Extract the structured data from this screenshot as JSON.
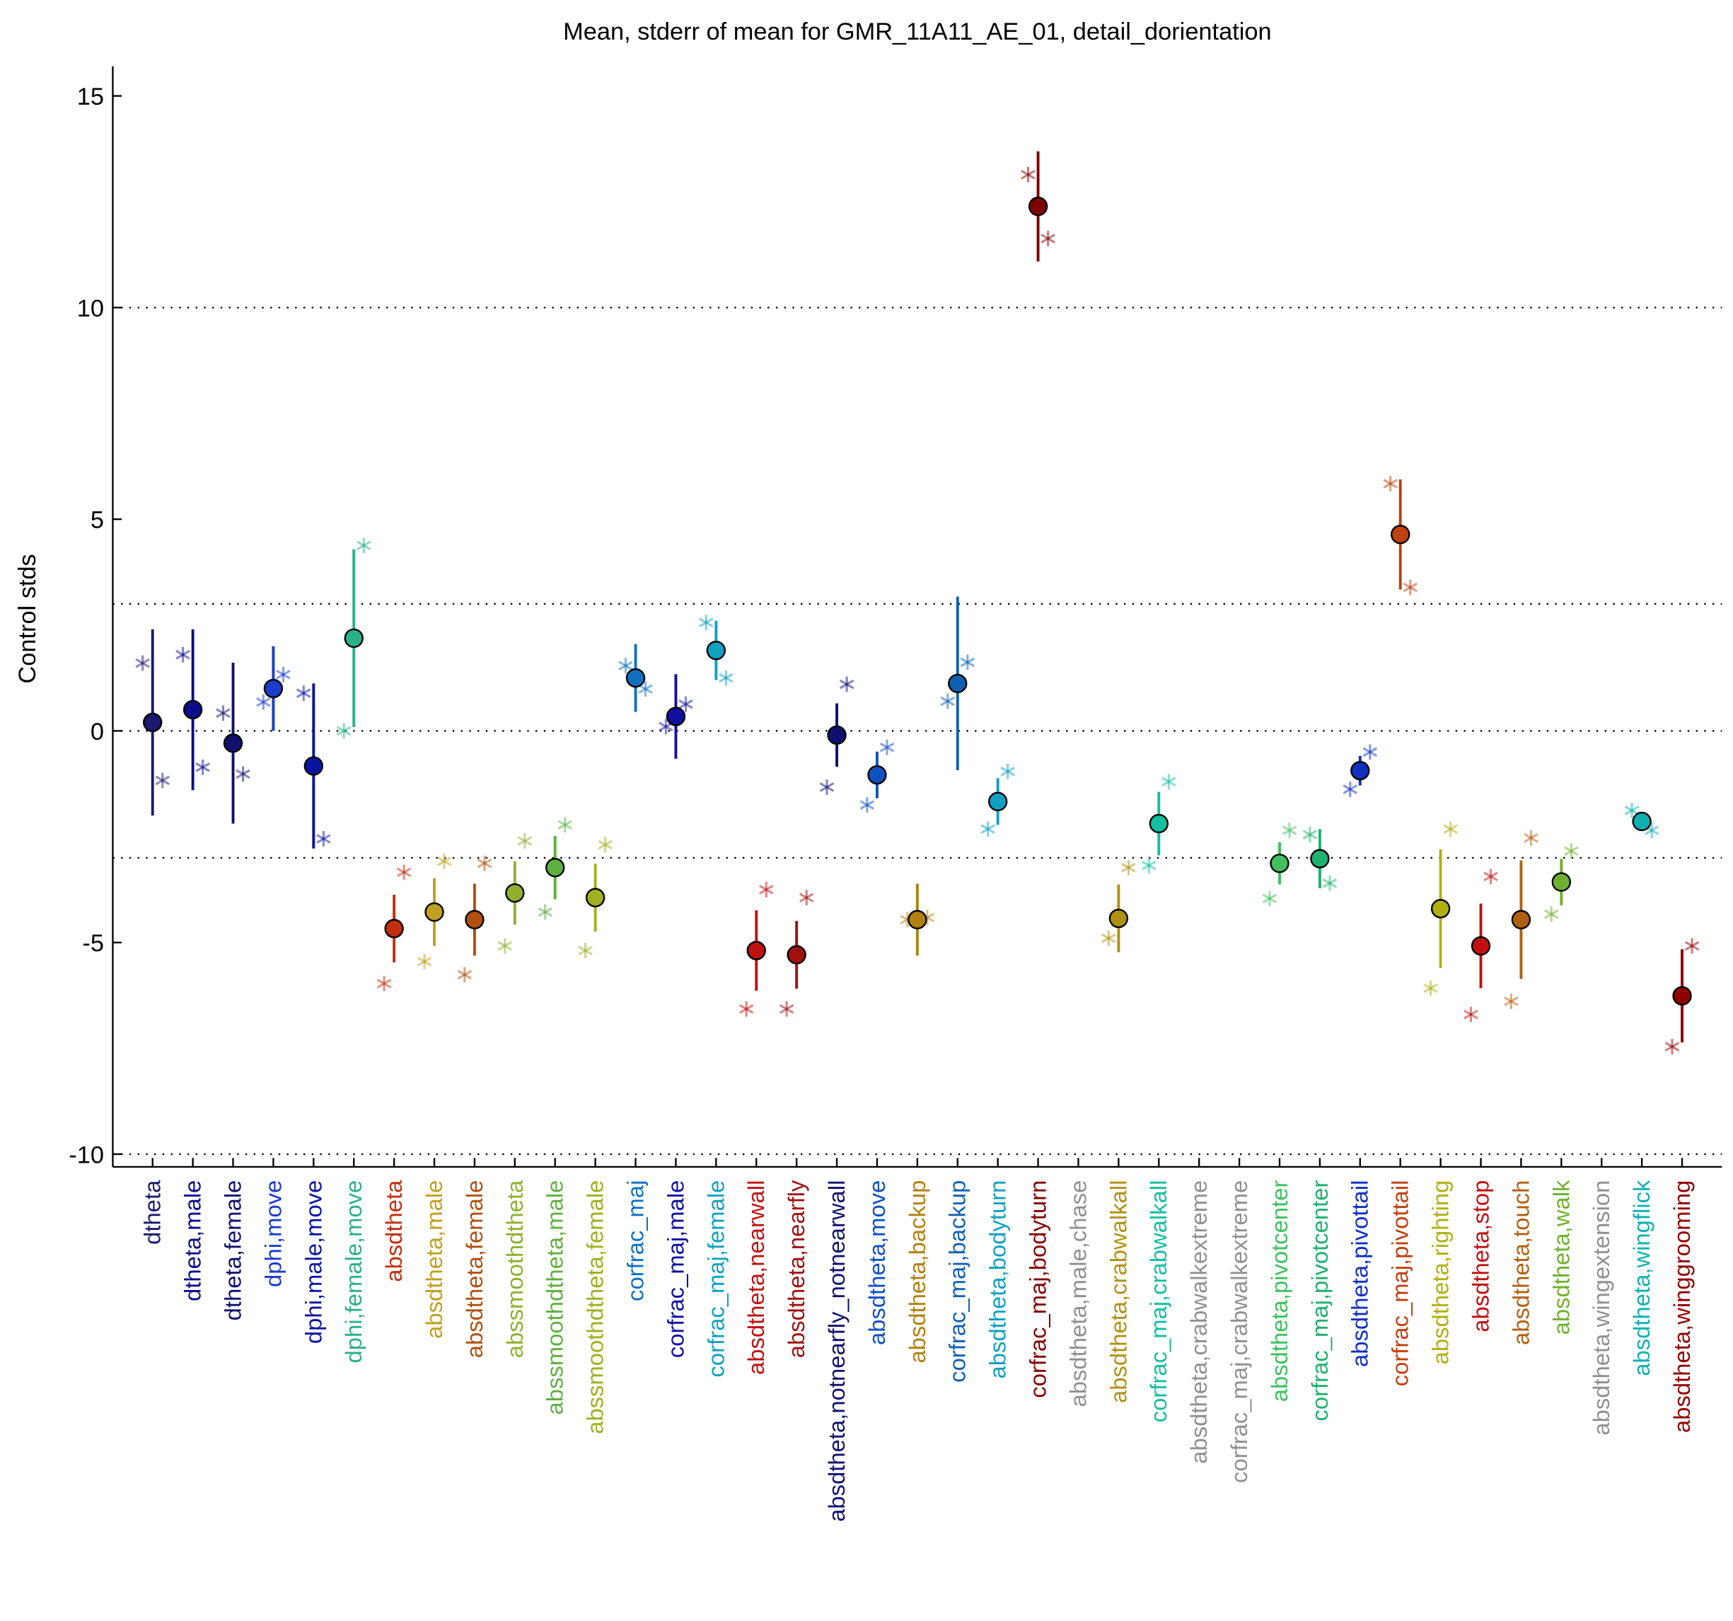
{
  "chart_data": {
    "type": "errorbar",
    "title": "Mean, stderr of mean for GMR_11A11_AE_01, detail_dorientation",
    "y_label": "Control stds",
    "ylim": [
      -10.3,
      15.7
    ],
    "yticks": [
      -10,
      -5,
      0,
      5,
      10,
      15
    ],
    "reference_lines": [
      -10,
      -3,
      0,
      3,
      10
    ],
    "categories": [
      "dtheta",
      "dtheta,male",
      "dtheta,female",
      "dphi,move",
      "dphi,male,move",
      "dphi,female,move",
      "absdtheta",
      "absdtheta,male",
      "absdtheta,female",
      "abssmoothdtheta",
      "abssmoothdtheta,male",
      "abssmoothdtheta,female",
      "corfrac_maj",
      "corfrac_maj,male",
      "corfrac_maj,female",
      "absdtheta,nearwall",
      "absdtheta,nearfly",
      "absdtheta,notnearfly_notnearwall",
      "absdtheta,move",
      "absdtheta,backup",
      "corfrac_maj,backup",
      "absdtheta,bodyturn",
      "corfrac_maj,bodyturn",
      "absdtheta,male,chase",
      "absdtheta,crabwalkall",
      "corfrac_maj,crabwalkall",
      "absdtheta,crabwalkextreme",
      "corfrac_maj,crabwalkextreme",
      "absdtheta,pivotcenter",
      "corfrac_maj,pivotcenter",
      "absdtheta,pivottail",
      "corfrac_maj,pivottail",
      "absdtheta,righting",
      "absdtheta,stop",
      "absdtheta,touch",
      "absdtheta,walk",
      "absdtheta,wingextension",
      "absdtheta,wingflick",
      "absdtheta,winggrooming"
    ],
    "colors": [
      "#1a1a6e",
      "#0c0c8c",
      "#10106e",
      "#1a3cc8",
      "#0a14a0",
      "#2cb08a",
      "#c03010",
      "#c0a020",
      "#b05010",
      "#90b030",
      "#60b040",
      "#a0b020",
      "#1070c0",
      "#1010a0",
      "#10a0c0",
      "#c01010",
      "#a01010",
      "#101070",
      "#1050c0",
      "#b08010",
      "#1060b0",
      "#10a0c0",
      "#800000",
      "#909090",
      "#b09010",
      "#10c0a0",
      "#909090",
      "#909090",
      "#40c060",
      "#20b070",
      "#1030c0",
      "#c04010",
      "#b0b010",
      "#c01010",
      "#b06010",
      "#70b030",
      "#909090",
      "#10b0b0",
      "#900000"
    ],
    "values": [
      0.2,
      0.5,
      -0.29,
      1.0,
      -0.83,
      2.19,
      -4.67,
      -4.28,
      -4.46,
      -3.83,
      -3.23,
      -3.94,
      1.25,
      0.34,
      1.9,
      -5.19,
      -5.29,
      -0.1,
      -1.04,
      -4.46,
      1.12,
      -1.67,
      12.39,
      null,
      -4.43,
      -2.19,
      null,
      null,
      -3.13,
      -3.02,
      -0.94,
      4.64,
      -4.2,
      -5.08,
      -4.46,
      -3.57,
      null,
      -2.14,
      -6.26
    ],
    "errors": [
      2.2,
      1.9,
      1.9,
      1.0,
      1.95,
      2.1,
      0.8,
      0.8,
      0.85,
      0.75,
      0.75,
      0.8,
      0.8,
      1.0,
      0.7,
      0.95,
      0.8,
      0.75,
      0.55,
      0.85,
      2.05,
      0.55,
      1.3,
      null,
      0.8,
      0.75,
      null,
      null,
      0.5,
      0.7,
      0.35,
      1.3,
      1.4,
      1.0,
      1.4,
      0.55,
      null,
      0.15,
      1.1
    ],
    "left_values": [
      1.6,
      1.8,
      0.42,
      0.68,
      0.89,
      0,
      -5.97,
      -5.45,
      -5.76,
      -5.08,
      -4.28,
      -5.19,
      1.54,
      0.1,
      2.56,
      -6.57,
      -6.57,
      -1.33,
      -1.75,
      -4.46,
      0.7,
      -2.32,
      13.14,
      null,
      -4.9,
      -3.18,
      null,
      null,
      -3.96,
      -2.45,
      -1.38,
      5.84,
      -6.08,
      -6.7,
      -6.39,
      -4.33,
      null,
      -1.88,
      -7.46
    ],
    "right_values": [
      -1.17,
      -0.86,
      -1.02,
      1.33,
      -2.55,
      4.38,
      -3.34,
      -3.08,
      -3.13,
      -2.6,
      -2.22,
      -2.69,
      0.99,
      0.63,
      1.25,
      -3.75,
      -3.94,
      1.1,
      -0.39,
      -4.41,
      1.62,
      -0.96,
      11.63,
      null,
      -3.23,
      -1.2,
      null,
      null,
      -2.35,
      -3.6,
      -0.5,
      3.39,
      -2.32,
      -3.44,
      -2.53,
      -2.84,
      null,
      -2.35,
      -5.08
    ]
  }
}
